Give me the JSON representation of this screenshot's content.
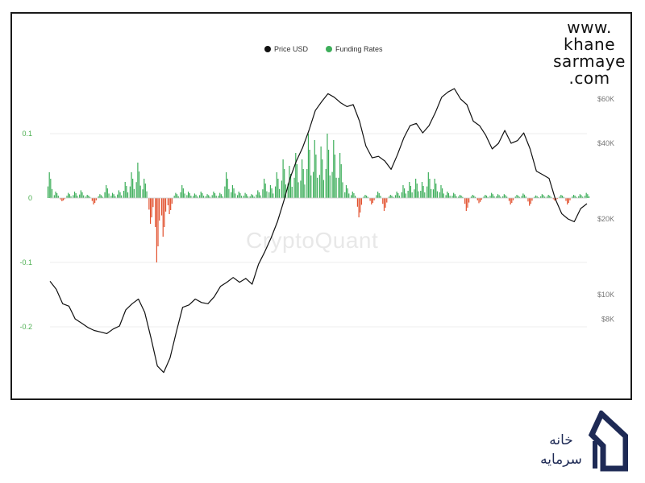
{
  "brand": {
    "url_lines": [
      "www.",
      "khane",
      "sarmaye",
      ".com"
    ],
    "logo_text_1": "خانه",
    "logo_text_2": "سرمایه"
  },
  "watermark": "CryptoQuant",
  "colors": {
    "price": "#111111",
    "funding_positive": "#3dae5a",
    "funding_negative": "#e2502d",
    "left_axis": "#4caf50",
    "right_axis": "#777777",
    "logo": "#1e2a55"
  },
  "chart_data": {
    "type": "line",
    "legend": [
      "Price USD",
      "Funding Rates"
    ],
    "y_left": {
      "ticks": [
        0.1,
        0,
        -0.1,
        -0.2
      ],
      "tick_labels": [
        "0.1",
        "0",
        "-0.1",
        "-0.2"
      ],
      "range": [
        -0.27,
        0.17
      ]
    },
    "y_right": {
      "scale": "log",
      "ticks": [
        60000,
        40000,
        20000,
        10000,
        8000
      ],
      "tick_labels": [
        "$60K",
        "$40K",
        "$20K",
        "$10K",
        "$8K"
      ],
      "range": [
        4500,
        90000
      ]
    },
    "series": [
      {
        "name": "Price USD",
        "axis": "right",
        "values": [
          11300,
          10500,
          9200,
          9000,
          8000,
          7700,
          7400,
          7200,
          7100,
          7000,
          7300,
          7500,
          8700,
          9200,
          9600,
          8500,
          6700,
          5200,
          4900,
          5600,
          7100,
          8900,
          9100,
          9600,
          9300,
          9200,
          9800,
          10800,
          11200,
          11700,
          11200,
          11600,
          11000,
          13200,
          14800,
          16800,
          19500,
          23500,
          29000,
          34000,
          38500,
          45000,
          54000,
          58500,
          63000,
          61000,
          58000,
          56000,
          57000,
          49000,
          39000,
          35000,
          35500,
          34000,
          31500,
          36000,
          42000,
          47000,
          48000,
          44000,
          47000,
          53000,
          61000,
          64000,
          66000,
          60000,
          57000,
          49000,
          47000,
          43000,
          38000,
          40000,
          45000,
          40000,
          41000,
          44000,
          38000,
          31000,
          30000,
          29000,
          24000,
          21000,
          20000,
          19500,
          22000,
          23000
        ]
      },
      {
        "name": "Funding Rates",
        "axis": "left",
        "values": [
          0.04,
          0.01,
          -0.005,
          0.008,
          0.01,
          0.012,
          0.005,
          -0.01,
          0.006,
          0.02,
          0.008,
          0.012,
          0.025,
          0.04,
          0.055,
          0.03,
          -0.04,
          -0.1,
          -0.06,
          -0.025,
          0.008,
          0.02,
          0.01,
          0.007,
          0.01,
          0.006,
          0.01,
          0.008,
          0.04,
          0.02,
          0.01,
          0.008,
          0.006,
          0.012,
          0.03,
          0.02,
          0.04,
          0.06,
          0.05,
          0.07,
          0.06,
          0.1,
          0.09,
          0.08,
          0.1,
          0.09,
          0.07,
          0.02,
          0.01,
          -0.03,
          0.005,
          -0.01,
          0.01,
          -0.02,
          0.005,
          0.01,
          0.02,
          0.025,
          0.03,
          0.025,
          0.04,
          0.03,
          0.02,
          0.01,
          0.008,
          0.005,
          -0.02,
          0.005,
          -0.008,
          0.005,
          0.008,
          0.006,
          0.006,
          -0.01,
          0.005,
          0.007,
          -0.012,
          0.004,
          0.006,
          0.005,
          -0.004,
          0.005,
          -0.01,
          0.005,
          0.006,
          0.008
        ]
      }
    ]
  }
}
